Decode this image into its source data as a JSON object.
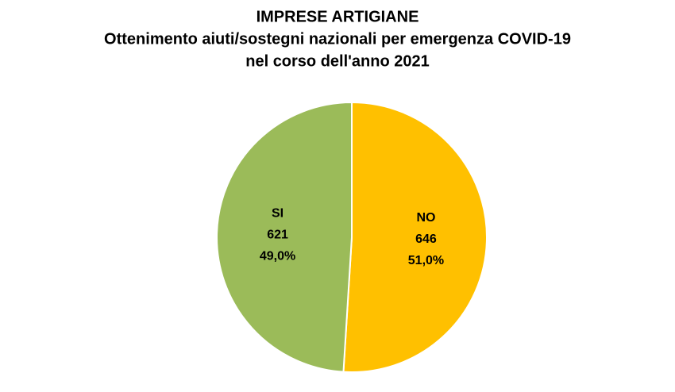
{
  "chart_data": {
    "type": "pie",
    "title": [
      "IMPRESE ARTIGIANE",
      "Ottenimento aiuti/sostegni nazionali per emergenza COVID-19",
      "nel corso dell'anno 2021"
    ],
    "categories": [
      "NO",
      "SI"
    ],
    "values": [
      646,
      621
    ],
    "percentages": [
      51.0,
      49.0
    ],
    "percentage_labels": [
      "51,0%",
      "49,0%"
    ],
    "colors": [
      "#FFC000",
      "#9BBB59"
    ]
  }
}
